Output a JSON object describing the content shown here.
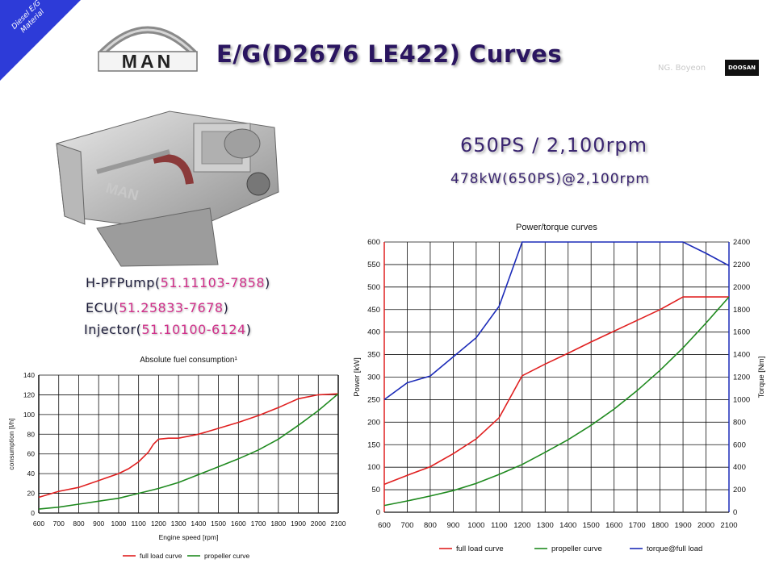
{
  "slide": {
    "corner_label": "Diesel E/G Material",
    "brand_logo_text": "MAN",
    "title": "E/G(D2676 LE422) Curves",
    "author": "NG. Boyeon",
    "partner_logo_text": "DOOSAN",
    "rating_main": "650PS / 2,100rpm",
    "rating_sub": "478kW(650PS)@2,100rpm",
    "parts": [
      {
        "name": "H-PFPump",
        "open": "(",
        "number": "51.11103-7858",
        "close": ")"
      },
      {
        "name": "ECU",
        "open": "(",
        "number": "51.25833-7678",
        "close": ")"
      },
      {
        "name": "Injector",
        "open": "(",
        "number": "51.10100-6124",
        "close": ")"
      }
    ]
  },
  "chart_data": [
    {
      "type": "line",
      "title": "Absolute fuel consumption¹",
      "xlabel": "Engine speed [rpm]",
      "ylabel": "consumption [l/h]",
      "x": [
        600,
        700,
        800,
        900,
        1000,
        1100,
        1200,
        1300,
        1400,
        1500,
        1600,
        1700,
        1800,
        1900,
        2000,
        2100
      ],
      "xlim": [
        600,
        2100
      ],
      "ylim": [
        0,
        140
      ],
      "xticks": [
        "600",
        "700",
        "800",
        "900",
        "1000",
        "1100",
        "1200",
        "1300",
        "1400",
        "1500",
        "1600",
        "1700",
        "1800",
        "1900",
        "2000",
        "2100"
      ],
      "yticks": [
        "0",
        "20",
        "40",
        "60",
        "80",
        "100",
        "120",
        "140"
      ],
      "grid": true,
      "legend_position": "bottom",
      "series": [
        {
          "name": "full load curve",
          "color": "#e02020",
          "points": [
            [
              600,
              16
            ],
            [
              700,
              22
            ],
            [
              800,
              26
            ],
            [
              900,
              33
            ],
            [
              1000,
              40
            ],
            [
              1050,
              45
            ],
            [
              1100,
              52
            ],
            [
              1150,
              62
            ],
            [
              1175,
              70
            ],
            [
              1200,
              75
            ],
            [
              1250,
              76
            ],
            [
              1300,
              76
            ],
            [
              1400,
              80
            ],
            [
              1500,
              86
            ],
            [
              1600,
              92
            ],
            [
              1700,
              99
            ],
            [
              1800,
              107
            ],
            [
              1900,
              116
            ],
            [
              2000,
              120
            ],
            [
              2100,
              121
            ]
          ]
        },
        {
          "name": "propeller curve",
          "color": "#1f8a1f",
          "points": [
            [
              600,
              4
            ],
            [
              700,
              6
            ],
            [
              800,
              9
            ],
            [
              900,
              12
            ],
            [
              1000,
              15
            ],
            [
              1100,
              20
            ],
            [
              1200,
              25
            ],
            [
              1300,
              31
            ],
            [
              1400,
              39
            ],
            [
              1500,
              47
            ],
            [
              1600,
              55
            ],
            [
              1700,
              64
            ],
            [
              1800,
              75
            ],
            [
              1900,
              89
            ],
            [
              2000,
              104
            ],
            [
              2100,
              121
            ]
          ]
        }
      ]
    },
    {
      "type": "line",
      "title": "Power/torque curves",
      "xlabel": "",
      "ylabel": "Power [kW]",
      "y2label": "Torque [Nm]",
      "xlim": [
        600,
        2100
      ],
      "ylim": [
        0,
        600
      ],
      "y2lim": [
        0,
        2400
      ],
      "xticks": [
        "600",
        "700",
        "800",
        "900",
        "1000",
        "1100",
        "1200",
        "1300",
        "1400",
        "1500",
        "1600",
        "1700",
        "1800",
        "1900",
        "2000",
        "2100"
      ],
      "yticks": [
        "0",
        "50",
        "100",
        "150",
        "200",
        "250",
        "300",
        "350",
        "400",
        "450",
        "500",
        "550",
        "600"
      ],
      "y2ticks": [
        "0",
        "200",
        "400",
        "600",
        "800",
        "1000",
        "1200",
        "1400",
        "1600",
        "1800",
        "2000",
        "2200",
        "2400"
      ],
      "grid": true,
      "legend_position": "bottom",
      "series": [
        {
          "name": "full load curve",
          "color": "#e02020",
          "axis": "left",
          "points": [
            [
              600,
              62
            ],
            [
              700,
              82
            ],
            [
              800,
              101
            ],
            [
              900,
              130
            ],
            [
              1000,
              163
            ],
            [
              1100,
              210
            ],
            [
              1200,
              303
            ],
            [
              1300,
              329
            ],
            [
              1400,
              353
            ],
            [
              1500,
              378
            ],
            [
              1600,
              402
            ],
            [
              1700,
              426
            ],
            [
              1800,
              450
            ],
            [
              1900,
              478
            ],
            [
              2000,
              478
            ],
            [
              2100,
              478
            ]
          ]
        },
        {
          "name": "propeller curve",
          "color": "#1f8a1f",
          "axis": "left",
          "points": [
            [
              600,
              15
            ],
            [
              700,
              25
            ],
            [
              800,
              36
            ],
            [
              900,
              48
            ],
            [
              1000,
              64
            ],
            [
              1100,
              84
            ],
            [
              1200,
              106
            ],
            [
              1300,
              133
            ],
            [
              1400,
              161
            ],
            [
              1500,
              193
            ],
            [
              1600,
              229
            ],
            [
              1700,
              270
            ],
            [
              1800,
              315
            ],
            [
              1900,
              365
            ],
            [
              2000,
              420
            ],
            [
              2100,
              478
            ]
          ]
        },
        {
          "name": "torque@full load",
          "color": "#1c2bb8",
          "axis": "right",
          "points": [
            [
              600,
              1000
            ],
            [
              700,
              1150
            ],
            [
              800,
              1210
            ],
            [
              900,
              1380
            ],
            [
              1000,
              1550
            ],
            [
              1100,
              1830
            ],
            [
              1200,
              2400
            ],
            [
              1300,
              2400
            ],
            [
              1400,
              2400
            ],
            [
              1500,
              2400
            ],
            [
              1600,
              2400
            ],
            [
              1700,
              2400
            ],
            [
              1800,
              2400
            ],
            [
              1900,
              2400
            ],
            [
              2000,
              2300
            ],
            [
              2100,
              2190
            ]
          ]
        }
      ]
    }
  ]
}
